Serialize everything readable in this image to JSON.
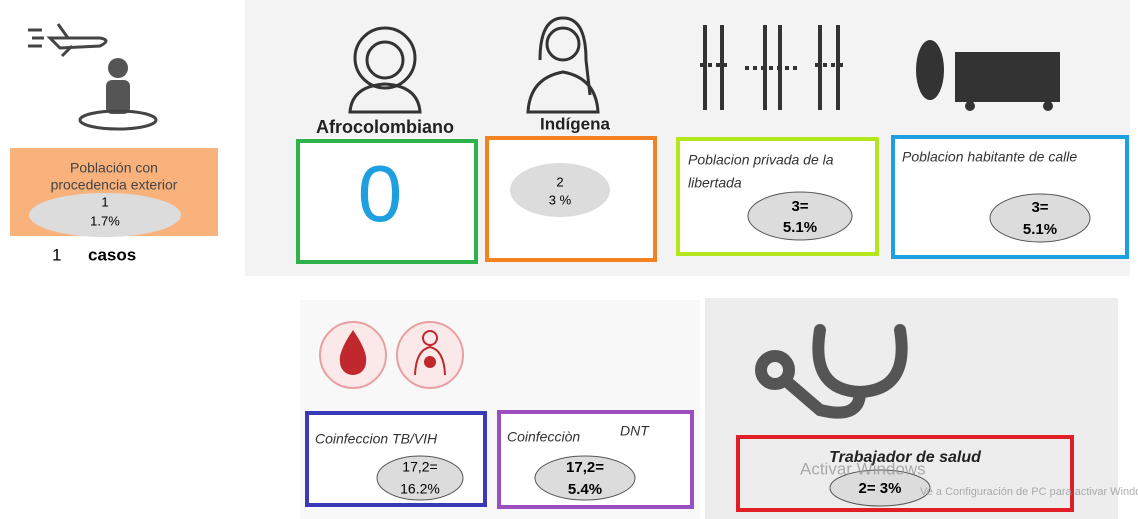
{
  "exterior": {
    "label": [
      "Población con",
      "procedencia exterior"
    ],
    "count": "1",
    "percent": "1.7%",
    "cases_count": "1",
    "cases_label": "casos"
  },
  "afrocolombiano": {
    "label": "Afrocolombiano",
    "value": "0"
  },
  "indigena": {
    "label": "Indígena",
    "count": "2",
    "percent": "3 %"
  },
  "privada_libertad": {
    "label": [
      "Poblacion privada de la",
      "libertada"
    ],
    "count": "3=",
    "percent": "5.1%"
  },
  "habitante_calle": {
    "label": "Poblacion habitante de calle",
    "count": "3=",
    "percent": "5.1%"
  },
  "tb_vih": {
    "label": "Coinfeccion TB/VIH",
    "count": "17,2=",
    "percent": "16.2%"
  },
  "dnt": {
    "label": "Coinfecciòn",
    "label2": "DNT",
    "count": "17,2=",
    "percent": "5.4%"
  },
  "trabajador_salud": {
    "label": "Trabajador de salud",
    "value": "2= 3%"
  },
  "watermark": {
    "title": "Activar Windows",
    "subtitle": "Ve a Configuración de PC para activar Windows."
  }
}
